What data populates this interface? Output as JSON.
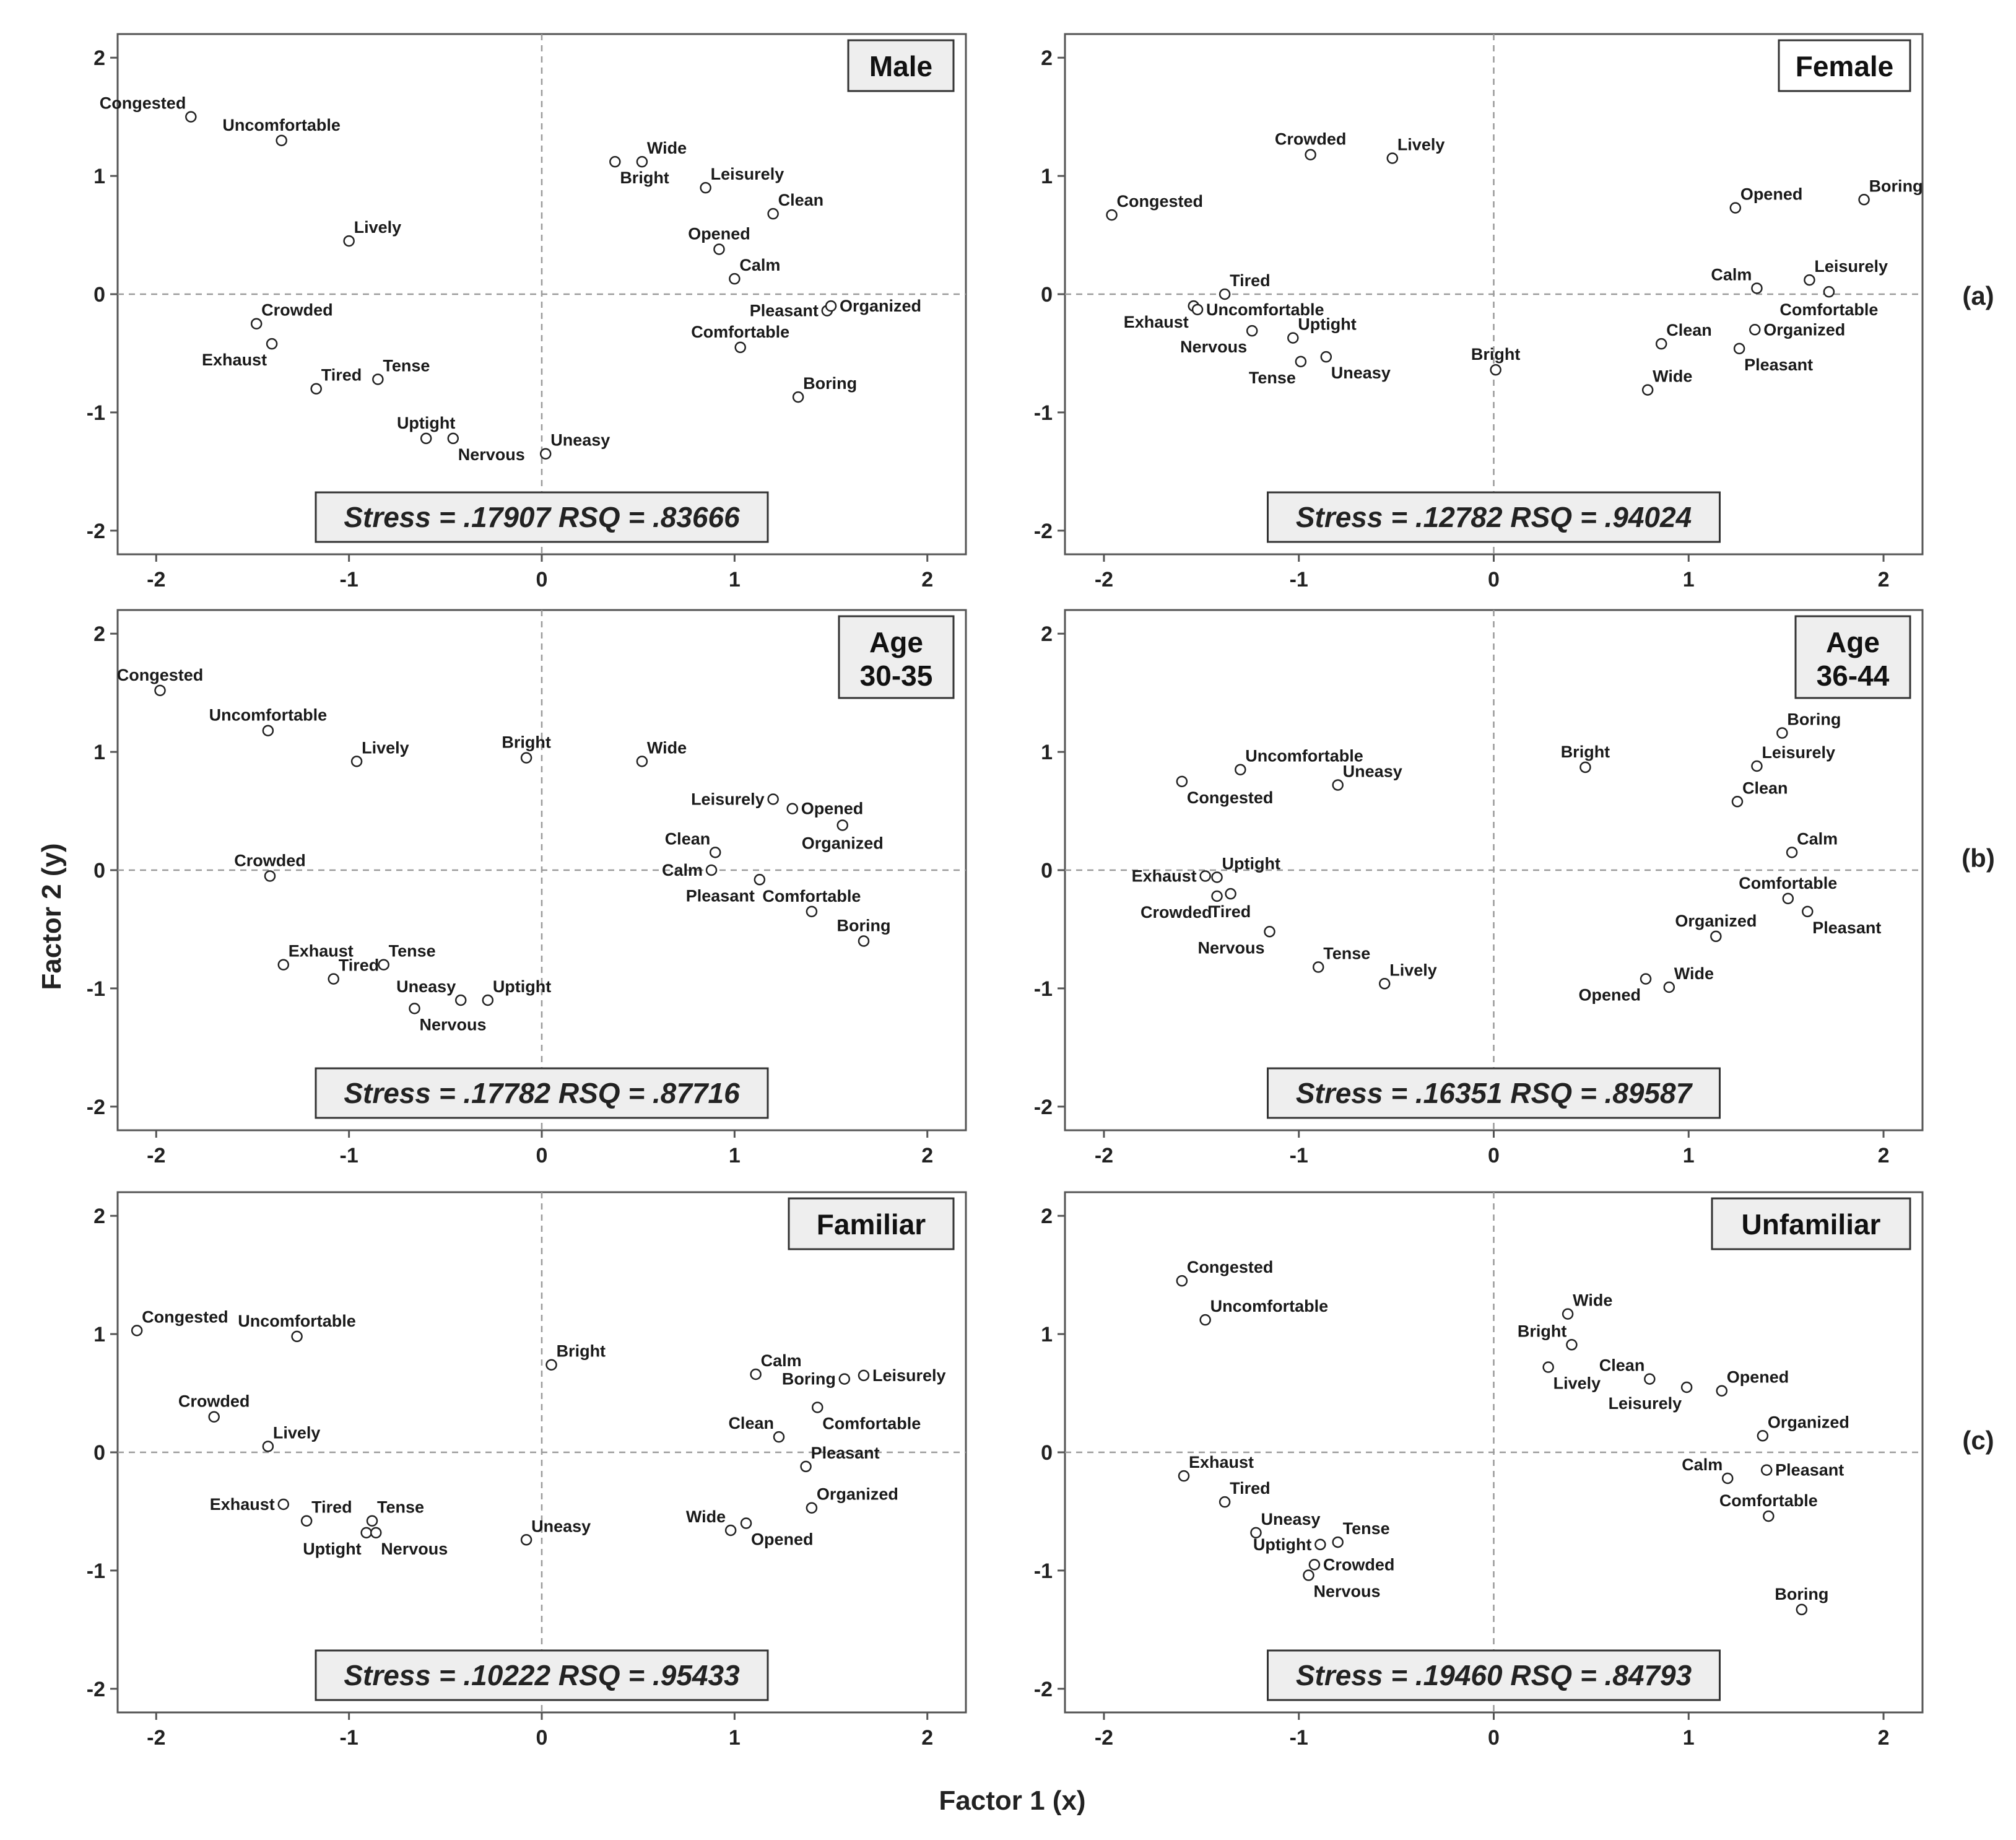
{
  "figure": {
    "xlabel": "Factor 1 (x)",
    "ylabel": "Factor 2 (y)",
    "row_labels": [
      "(a)",
      "(b)",
      "(c)"
    ]
  },
  "chart_data": [
    {
      "type": "scatter",
      "title": [
        "Male"
      ],
      "title_style": "shaded",
      "stress": "Stress = .17907  RSQ = .83666",
      "xlim": [
        -2.2,
        2.2
      ],
      "ylim": [
        -2.2,
        2.2
      ],
      "xticks": [
        -2,
        -1,
        0,
        1,
        2
      ],
      "yticks": [
        -2,
        -1,
        0,
        1,
        2
      ],
      "points": [
        {
          "label": "Congested",
          "x": -1.82,
          "y": 1.5,
          "pos": "ul"
        },
        {
          "label": "Uncomfortable",
          "x": -1.35,
          "y": 1.3,
          "pos": "u"
        },
        {
          "label": "Lively",
          "x": -1.0,
          "y": 0.45,
          "pos": "ur"
        },
        {
          "label": "Crowded",
          "x": -1.48,
          "y": -0.25,
          "pos": "ur"
        },
        {
          "label": "Exhaust",
          "x": -1.4,
          "y": -0.42,
          "pos": "bl"
        },
        {
          "label": "Tired",
          "x": -1.17,
          "y": -0.8,
          "pos": "ur"
        },
        {
          "label": "Tense",
          "x": -0.85,
          "y": -0.72,
          "pos": "ur"
        },
        {
          "label": "Uptight",
          "x": -0.6,
          "y": -1.22,
          "pos": "u"
        },
        {
          "label": "Nervous",
          "x": -0.46,
          "y": -1.22,
          "pos": "br"
        },
        {
          "label": "Uneasy",
          "x": 0.02,
          "y": -1.35,
          "pos": "ur"
        },
        {
          "label": "Wide",
          "x": 0.52,
          "y": 1.12,
          "pos": "ur"
        },
        {
          "label": "Bright",
          "x": 0.38,
          "y": 1.12,
          "pos": "br"
        },
        {
          "label": "Leisurely",
          "x": 0.85,
          "y": 0.9,
          "pos": "ur"
        },
        {
          "label": "Clean",
          "x": 1.2,
          "y": 0.68,
          "pos": "ur"
        },
        {
          "label": "Opened",
          "x": 0.92,
          "y": 0.38,
          "pos": "u"
        },
        {
          "label": "Calm",
          "x": 1.0,
          "y": 0.13,
          "pos": "ur"
        },
        {
          "label": "Pleasant",
          "x": 1.48,
          "y": -0.14,
          "pos": "l"
        },
        {
          "label": "Organized",
          "x": 1.5,
          "y": -0.1,
          "pos": "r"
        },
        {
          "label": "Comfortable",
          "x": 1.03,
          "y": -0.45,
          "pos": "u"
        },
        {
          "label": "Boring",
          "x": 1.33,
          "y": -0.87,
          "pos": "ur"
        }
      ]
    },
    {
      "type": "scatter",
      "title": [
        "Female"
      ],
      "title_style": "plain",
      "stress": "Stress = .12782  RSQ = .94024",
      "xlim": [
        -2.2,
        2.2
      ],
      "ylim": [
        -2.2,
        2.2
      ],
      "xticks": [
        -2,
        -1,
        0,
        1,
        2
      ],
      "yticks": [
        -2,
        -1,
        0,
        1,
        2
      ],
      "points": [
        {
          "label": "Congested",
          "x": -1.96,
          "y": 0.67,
          "pos": "ur"
        },
        {
          "label": "Crowded",
          "x": -0.94,
          "y": 1.18,
          "pos": "u"
        },
        {
          "label": "Lively",
          "x": -0.52,
          "y": 1.15,
          "pos": "ur"
        },
        {
          "label": "Tired",
          "x": -1.38,
          "y": 0.0,
          "pos": "ur"
        },
        {
          "label": "Exhaust",
          "x": -1.54,
          "y": -0.1,
          "pos": "bl"
        },
        {
          "label": "Uncomfortable",
          "x": -1.52,
          "y": -0.13,
          "pos": "r"
        },
        {
          "label": "Nervous",
          "x": -1.24,
          "y": -0.31,
          "pos": "bl"
        },
        {
          "label": "Uptight",
          "x": -1.03,
          "y": -0.37,
          "pos": "ur"
        },
        {
          "label": "Tense",
          "x": -0.99,
          "y": -0.57,
          "pos": "bl"
        },
        {
          "label": "Uneasy",
          "x": -0.86,
          "y": -0.53,
          "pos": "br"
        },
        {
          "label": "Bright",
          "x": 0.01,
          "y": -0.64,
          "pos": "u"
        },
        {
          "label": "Opened",
          "x": 1.24,
          "y": 0.73,
          "pos": "ur"
        },
        {
          "label": "Boring",
          "x": 1.9,
          "y": 0.8,
          "pos": "ur"
        },
        {
          "label": "Calm",
          "x": 1.35,
          "y": 0.05,
          "pos": "ul"
        },
        {
          "label": "Leisurely",
          "x": 1.62,
          "y": 0.12,
          "pos": "ur"
        },
        {
          "label": "Comfortable",
          "x": 1.72,
          "y": 0.02,
          "pos": "b"
        },
        {
          "label": "Clean",
          "x": 0.86,
          "y": -0.42,
          "pos": "ur"
        },
        {
          "label": "Organized",
          "x": 1.34,
          "y": -0.3,
          "pos": "r"
        },
        {
          "label": "Pleasant",
          "x": 1.26,
          "y": -0.46,
          "pos": "br"
        },
        {
          "label": "Wide",
          "x": 0.79,
          "y": -0.81,
          "pos": "ur"
        }
      ]
    },
    {
      "type": "scatter",
      "title": [
        "Age",
        "30-35"
      ],
      "title_style": "shaded",
      "stress": "Stress = .17782  RSQ = .87716",
      "xlim": [
        -2.2,
        2.2
      ],
      "ylim": [
        -2.2,
        2.2
      ],
      "xticks": [
        -2,
        -1,
        0,
        1,
        2
      ],
      "yticks": [
        -2,
        -1,
        0,
        1,
        2
      ],
      "points": [
        {
          "label": "Congested",
          "x": -1.98,
          "y": 1.52,
          "pos": "u"
        },
        {
          "label": "Uncomfortable",
          "x": -1.42,
          "y": 1.18,
          "pos": "u"
        },
        {
          "label": "Lively",
          "x": -0.96,
          "y": 0.92,
          "pos": "ur"
        },
        {
          "label": "Bright",
          "x": -0.08,
          "y": 0.95,
          "pos": "u"
        },
        {
          "label": "Wide",
          "x": 0.52,
          "y": 0.92,
          "pos": "ur"
        },
        {
          "label": "Crowded",
          "x": -1.41,
          "y": -0.05,
          "pos": "u"
        },
        {
          "label": "Exhaust",
          "x": -1.34,
          "y": -0.8,
          "pos": "ur"
        },
        {
          "label": "Tense",
          "x": -0.82,
          "y": -0.8,
          "pos": "ur"
        },
        {
          "label": "Tired",
          "x": -1.08,
          "y": -0.92,
          "pos": "ur"
        },
        {
          "label": "Uneasy",
          "x": -0.42,
          "y": -1.1,
          "pos": "ul"
        },
        {
          "label": "Uptight",
          "x": -0.28,
          "y": -1.1,
          "pos": "ur"
        },
        {
          "label": "Nervous",
          "x": -0.66,
          "y": -1.17,
          "pos": "br"
        },
        {
          "label": "Leisurely",
          "x": 1.2,
          "y": 0.6,
          "pos": "l"
        },
        {
          "label": "Opened",
          "x": 1.3,
          "y": 0.52,
          "pos": "r"
        },
        {
          "label": "Organized",
          "x": 1.56,
          "y": 0.38,
          "pos": "b"
        },
        {
          "label": "Clean",
          "x": 0.9,
          "y": 0.15,
          "pos": "ul"
        },
        {
          "label": "Calm",
          "x": 0.88,
          "y": 0.0,
          "pos": "l"
        },
        {
          "label": "Pleasant",
          "x": 1.13,
          "y": -0.08,
          "pos": "bl"
        },
        {
          "label": "Comfortable",
          "x": 1.4,
          "y": -0.35,
          "pos": "u"
        },
        {
          "label": "Boring",
          "x": 1.67,
          "y": -0.6,
          "pos": "u"
        }
      ]
    },
    {
      "type": "scatter",
      "title": [
        "Age",
        "36-44"
      ],
      "title_style": "shaded",
      "stress": "Stress = .16351  RSQ = .89587",
      "xlim": [
        -2.2,
        2.2
      ],
      "ylim": [
        -2.2,
        2.2
      ],
      "xticks": [
        -2,
        -1,
        0,
        1,
        2
      ],
      "yticks": [
        -2,
        -1,
        0,
        1,
        2
      ],
      "points": [
        {
          "label": "Uncomfortable",
          "x": -1.3,
          "y": 0.85,
          "pos": "ur"
        },
        {
          "label": "Uneasy",
          "x": -0.8,
          "y": 0.72,
          "pos": "ur"
        },
        {
          "label": "Congested",
          "x": -1.6,
          "y": 0.75,
          "pos": "br"
        },
        {
          "label": "Uptight",
          "x": -1.42,
          "y": -0.06,
          "pos": "ur"
        },
        {
          "label": "Exhaust",
          "x": -1.48,
          "y": -0.05,
          "pos": "l"
        },
        {
          "label": "Tired",
          "x": -1.35,
          "y": -0.2,
          "pos": "b"
        },
        {
          "label": "Crowded",
          "x": -1.42,
          "y": -0.22,
          "pos": "bl"
        },
        {
          "label": "Nervous",
          "x": -1.15,
          "y": -0.52,
          "pos": "bl"
        },
        {
          "label": "Tense",
          "x": -0.9,
          "y": -0.82,
          "pos": "ur"
        },
        {
          "label": "Lively",
          "x": -0.56,
          "y": -0.96,
          "pos": "ur"
        },
        {
          "label": "Bright",
          "x": 0.47,
          "y": 0.87,
          "pos": "u"
        },
        {
          "label": "Boring",
          "x": 1.48,
          "y": 1.16,
          "pos": "ur"
        },
        {
          "label": "Leisurely",
          "x": 1.35,
          "y": 0.88,
          "pos": "ur"
        },
        {
          "label": "Clean",
          "x": 1.25,
          "y": 0.58,
          "pos": "ur"
        },
        {
          "label": "Calm",
          "x": 1.53,
          "y": 0.15,
          "pos": "ur"
        },
        {
          "label": "Comfortable",
          "x": 1.51,
          "y": -0.24,
          "pos": "u"
        },
        {
          "label": "Pleasant",
          "x": 1.61,
          "y": -0.35,
          "pos": "br"
        },
        {
          "label": "Organized",
          "x": 1.14,
          "y": -0.56,
          "pos": "u"
        },
        {
          "label": "Wide",
          "x": 0.9,
          "y": -0.99,
          "pos": "ur"
        },
        {
          "label": "Opened",
          "x": 0.78,
          "y": -0.92,
          "pos": "bl"
        }
      ]
    },
    {
      "type": "scatter",
      "title": [
        "Familiar"
      ],
      "title_style": "shaded",
      "stress": "Stress = .10222  RSQ = .95433",
      "xlim": [
        -2.2,
        2.2
      ],
      "ylim": [
        -2.2,
        2.2
      ],
      "xticks": [
        -2,
        -1,
        0,
        1,
        2
      ],
      "yticks": [
        -2,
        -1,
        0,
        1,
        2
      ],
      "points": [
        {
          "label": "Congested",
          "x": -2.1,
          "y": 1.03,
          "pos": "ur"
        },
        {
          "label": "Uncomfortable",
          "x": -1.27,
          "y": 0.98,
          "pos": "u"
        },
        {
          "label": "Crowded",
          "x": -1.7,
          "y": 0.3,
          "pos": "u"
        },
        {
          "label": "Lively",
          "x": -1.42,
          "y": 0.05,
          "pos": "ur"
        },
        {
          "label": "Exhaust",
          "x": -1.34,
          "y": -0.44,
          "pos": "l"
        },
        {
          "label": "Tired",
          "x": -1.22,
          "y": -0.58,
          "pos": "ur"
        },
        {
          "label": "Tense",
          "x": -0.88,
          "y": -0.58,
          "pos": "ur"
        },
        {
          "label": "Uptight",
          "x": -0.91,
          "y": -0.68,
          "pos": "bl"
        },
        {
          "label": "Nervous",
          "x": -0.86,
          "y": -0.68,
          "pos": "br"
        },
        {
          "label": "Uneasy",
          "x": -0.08,
          "y": -0.74,
          "pos": "ur"
        },
        {
          "label": "Bright",
          "x": 0.05,
          "y": 0.74,
          "pos": "ur"
        },
        {
          "label": "Calm",
          "x": 1.11,
          "y": 0.66,
          "pos": "ur"
        },
        {
          "label": "Boring",
          "x": 1.57,
          "y": 0.62,
          "pos": "l"
        },
        {
          "label": "Leisurely",
          "x": 1.67,
          "y": 0.65,
          "pos": "r"
        },
        {
          "label": "Comfortable",
          "x": 1.43,
          "y": 0.38,
          "pos": "br"
        },
        {
          "label": "Clean",
          "x": 1.23,
          "y": 0.13,
          "pos": "ul"
        },
        {
          "label": "Pleasant",
          "x": 1.37,
          "y": -0.12,
          "pos": "ur"
        },
        {
          "label": "Organized",
          "x": 1.4,
          "y": -0.47,
          "pos": "ur"
        },
        {
          "label": "Wide",
          "x": 0.98,
          "y": -0.66,
          "pos": "ul"
        },
        {
          "label": "Opened",
          "x": 1.06,
          "y": -0.6,
          "pos": "br"
        }
      ]
    },
    {
      "type": "scatter",
      "title": [
        "Unfamiliar"
      ],
      "title_style": "shaded",
      "stress": "Stress = .19460  RSQ = .84793",
      "xlim": [
        -2.2,
        2.2
      ],
      "ylim": [
        -2.2,
        2.2
      ],
      "xticks": [
        -2,
        -1,
        0,
        1,
        2
      ],
      "yticks": [
        -2,
        -1,
        0,
        1,
        2
      ],
      "points": [
        {
          "label": "Congested",
          "x": -1.6,
          "y": 1.45,
          "pos": "ur"
        },
        {
          "label": "Uncomfortable",
          "x": -1.48,
          "y": 1.12,
          "pos": "ur"
        },
        {
          "label": "Wide",
          "x": 0.38,
          "y": 1.17,
          "pos": "ur"
        },
        {
          "label": "Bright",
          "x": 0.4,
          "y": 0.91,
          "pos": "ul"
        },
        {
          "label": "Lively",
          "x": 0.28,
          "y": 0.72,
          "pos": "br"
        },
        {
          "label": "Clean",
          "x": 0.8,
          "y": 0.62,
          "pos": "ul"
        },
        {
          "label": "Opened",
          "x": 1.17,
          "y": 0.52,
          "pos": "ur"
        },
        {
          "label": "Leisurely",
          "x": 0.99,
          "y": 0.55,
          "pos": "bl"
        },
        {
          "label": "Organized",
          "x": 1.38,
          "y": 0.14,
          "pos": "ur"
        },
        {
          "label": "Calm",
          "x": 1.2,
          "y": -0.22,
          "pos": "ul"
        },
        {
          "label": "Pleasant",
          "x": 1.4,
          "y": -0.15,
          "pos": "r"
        },
        {
          "label": "Comfortable",
          "x": 1.41,
          "y": -0.54,
          "pos": "u"
        },
        {
          "label": "Boring",
          "x": 1.58,
          "y": -1.33,
          "pos": "u"
        },
        {
          "label": "Exhaust",
          "x": -1.59,
          "y": -0.2,
          "pos": "ur"
        },
        {
          "label": "Tired",
          "x": -1.38,
          "y": -0.42,
          "pos": "ur"
        },
        {
          "label": "Uneasy",
          "x": -1.22,
          "y": -0.68,
          "pos": "ur"
        },
        {
          "label": "Tense",
          "x": -0.8,
          "y": -0.76,
          "pos": "ur"
        },
        {
          "label": "Uptight",
          "x": -0.89,
          "y": -0.78,
          "pos": "l"
        },
        {
          "label": "Crowded",
          "x": -0.92,
          "y": -0.95,
          "pos": "r"
        },
        {
          "label": "Nervous",
          "x": -0.95,
          "y": -1.04,
          "pos": "br"
        }
      ]
    }
  ]
}
